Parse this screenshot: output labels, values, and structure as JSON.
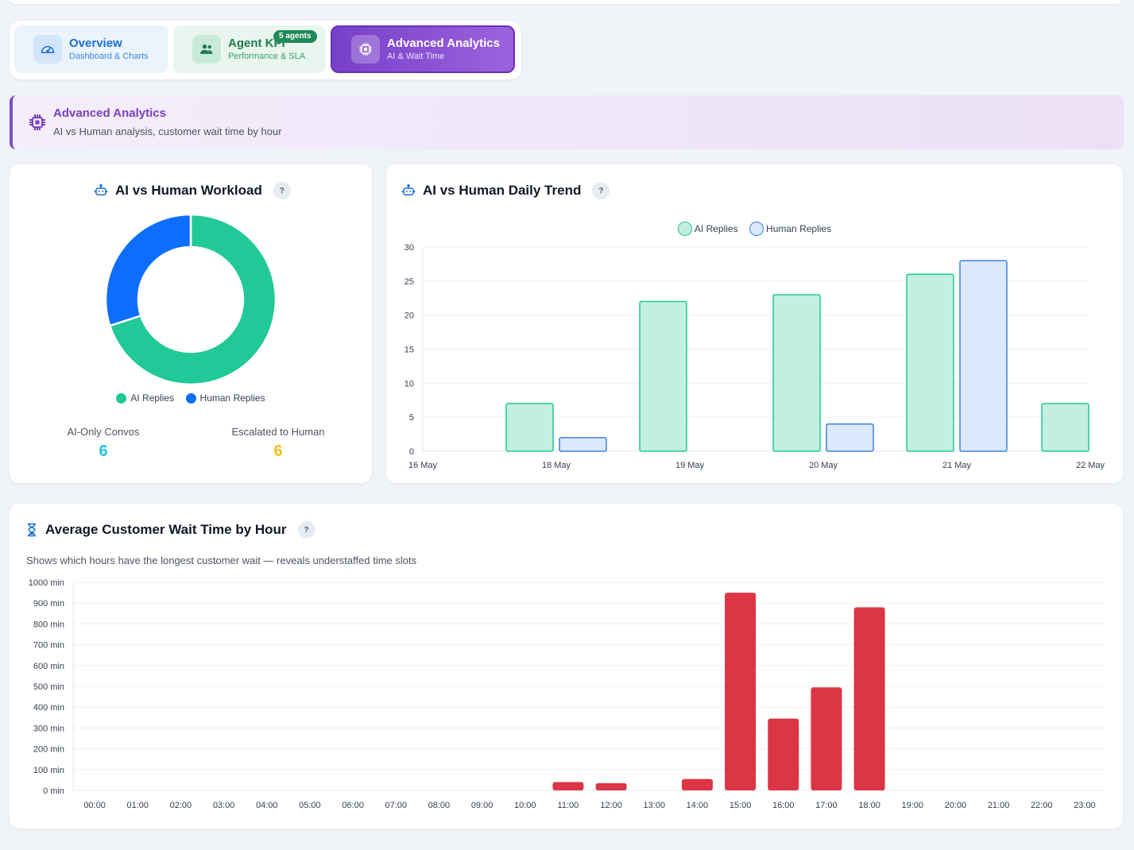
{
  "tabs": [
    {
      "title": "Overview",
      "subtitle": "Dashboard & Charts",
      "icon": "gauge-icon"
    },
    {
      "title": "Agent KPI",
      "subtitle": "Performance & SLA",
      "icon": "users-icon",
      "badge": "5 agents"
    },
    {
      "title": "Advanced Analytics",
      "subtitle": "AI & Wait Time",
      "icon": "chip-icon",
      "active": true
    }
  ],
  "banner": {
    "title": "Advanced Analytics",
    "subtitle": "AI vs Human analysis, customer wait time by hour"
  },
  "workload": {
    "title": "AI vs Human Workload",
    "help": "?",
    "stats": [
      {
        "label": "AI-Only Convos",
        "value": "6",
        "color": "#22c3e6"
      },
      {
        "label": "Escalated to Human",
        "value": "6",
        "color": "#f5bf17"
      }
    ]
  },
  "trend": {
    "title": "AI vs Human Daily Trend",
    "help": "?"
  },
  "wait": {
    "title": "Average Customer Wait Time by Hour",
    "help": "?",
    "subtitle": "Shows which hours have the longest customer wait — reveals understaffed time slots"
  },
  "colors": {
    "ai": "#20c997",
    "human": "#0d6efd",
    "ai_fill": "#c3efdf",
    "human_fill": "#dce8fc",
    "human_border": "#3b82e0",
    "wait_bar": "#dc3545"
  },
  "chart_data": [
    {
      "type": "pie",
      "legend": [
        "AI Replies",
        "Human Replies"
      ],
      "legend_position": "bottom",
      "values": [
        70,
        30
      ]
    },
    {
      "type": "bar",
      "legend_position": "top",
      "x": [
        "16 May",
        "18 May",
        "19 May",
        "20 May",
        "21 May",
        "22 May"
      ],
      "series": [
        {
          "name": "AI Replies",
          "values": [
            0,
            7,
            22,
            23,
            26,
            7
          ]
        },
        {
          "name": "Human Replies",
          "values": [
            0,
            2,
            0,
            4,
            28,
            0
          ]
        }
      ],
      "yticks": [
        "0",
        "5",
        "10",
        "15",
        "20",
        "25",
        "30"
      ],
      "ylim": [
        0,
        30
      ],
      "grid": true
    },
    {
      "type": "bar",
      "categories": [
        "00:00",
        "01:00",
        "02:00",
        "03:00",
        "04:00",
        "05:00",
        "06:00",
        "07:00",
        "08:00",
        "09:00",
        "10:00",
        "11:00",
        "12:00",
        "13:00",
        "14:00",
        "15:00",
        "16:00",
        "17:00",
        "18:00",
        "19:00",
        "20:00",
        "21:00",
        "22:00",
        "23:00"
      ],
      "values": [
        0,
        0,
        0,
        0,
        0,
        0,
        0,
        0,
        0,
        0,
        0,
        40,
        35,
        0,
        55,
        950,
        345,
        495,
        880,
        0,
        0,
        0,
        0,
        0
      ],
      "yticks": [
        "0 min",
        "100 min",
        "200 min",
        "300 min",
        "400 min",
        "500 min",
        "600 min",
        "700 min",
        "800 min",
        "900 min",
        "1000 min"
      ],
      "ylim": [
        0,
        1000
      ],
      "grid": true
    }
  ]
}
